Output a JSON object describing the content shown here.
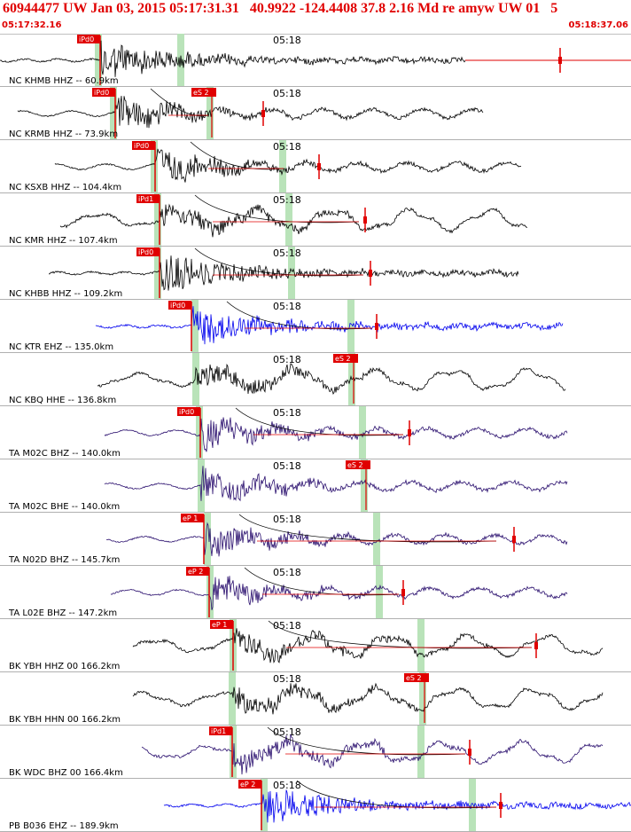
{
  "header": {
    "title": "60944477 UW Jan 03, 2015 05:17:31.31   40.9922 -124.4408 37.8 2.16 Md re amyw UW 01   5",
    "start_time": "05:17:32.16",
    "end_time": "05:18:37.06"
  },
  "minute_tick": "05:18",
  "colors": {
    "red": "#e00000",
    "green": "#b9e3b9",
    "black": "#000000",
    "blue": "#0000ee",
    "navy": "#2a0f6e",
    "grid": "#b0b0b0"
  },
  "traces": [
    {
      "label": "NC KHMB HHZ -- 60.9km",
      "pick": "iPd0",
      "color": "black",
      "freq": "high"
    },
    {
      "label": "NC KRMB HHZ -- 73.9km",
      "pick": "iPd0",
      "s_pick": "eS 2",
      "color": "black",
      "freq": "mixed"
    },
    {
      "label": "NC KSXB HHZ -- 104.4km",
      "pick": "iPd0",
      "color": "black",
      "freq": "mixed"
    },
    {
      "label": "NC KMR HHZ -- 107.4km",
      "pick": "iPd1",
      "color": "black",
      "freq": "low"
    },
    {
      "label": "NC KHBB HHZ -- 109.2km",
      "pick": "iPd0",
      "color": "black",
      "freq": "high"
    },
    {
      "label": "NC KTR EHZ -- 135.0km",
      "pick": "iPd0",
      "color": "blue",
      "freq": "high"
    },
    {
      "label": "NC KBQ HHE -- 136.8km",
      "s_pick": "eS 2",
      "color": "black",
      "freq": "low"
    },
    {
      "label": "TA M02C BHZ -- 140.0km",
      "pick": "iPd0",
      "color": "navy",
      "freq": "mixed"
    },
    {
      "label": "TA M02C BHE -- 140.0km",
      "s_pick": "eS 2",
      "color": "navy",
      "freq": "mixed"
    },
    {
      "label": "TA N02D BHZ -- 145.7km",
      "pick": "eP 1",
      "color": "navy",
      "freq": "mixed"
    },
    {
      "label": "TA L02E BHZ -- 147.2km",
      "pick": "eP 2",
      "color": "navy",
      "freq": "mixed"
    },
    {
      "label": "BK YBH HHZ 00 166.2km",
      "pick": "eP 1",
      "color": "black",
      "freq": "low"
    },
    {
      "label": "BK YBH HHN 00 166.2km",
      "s_pick": "eS 2",
      "color": "black",
      "freq": "low"
    },
    {
      "label": "BK WDC BHZ 00 166.4km",
      "pick": "iPd1",
      "color": "navy",
      "freq": "low"
    },
    {
      "label": "PB B036 EHZ -- 189.9km",
      "pick": "eP 2",
      "color": "blue",
      "freq": "high"
    }
  ]
}
